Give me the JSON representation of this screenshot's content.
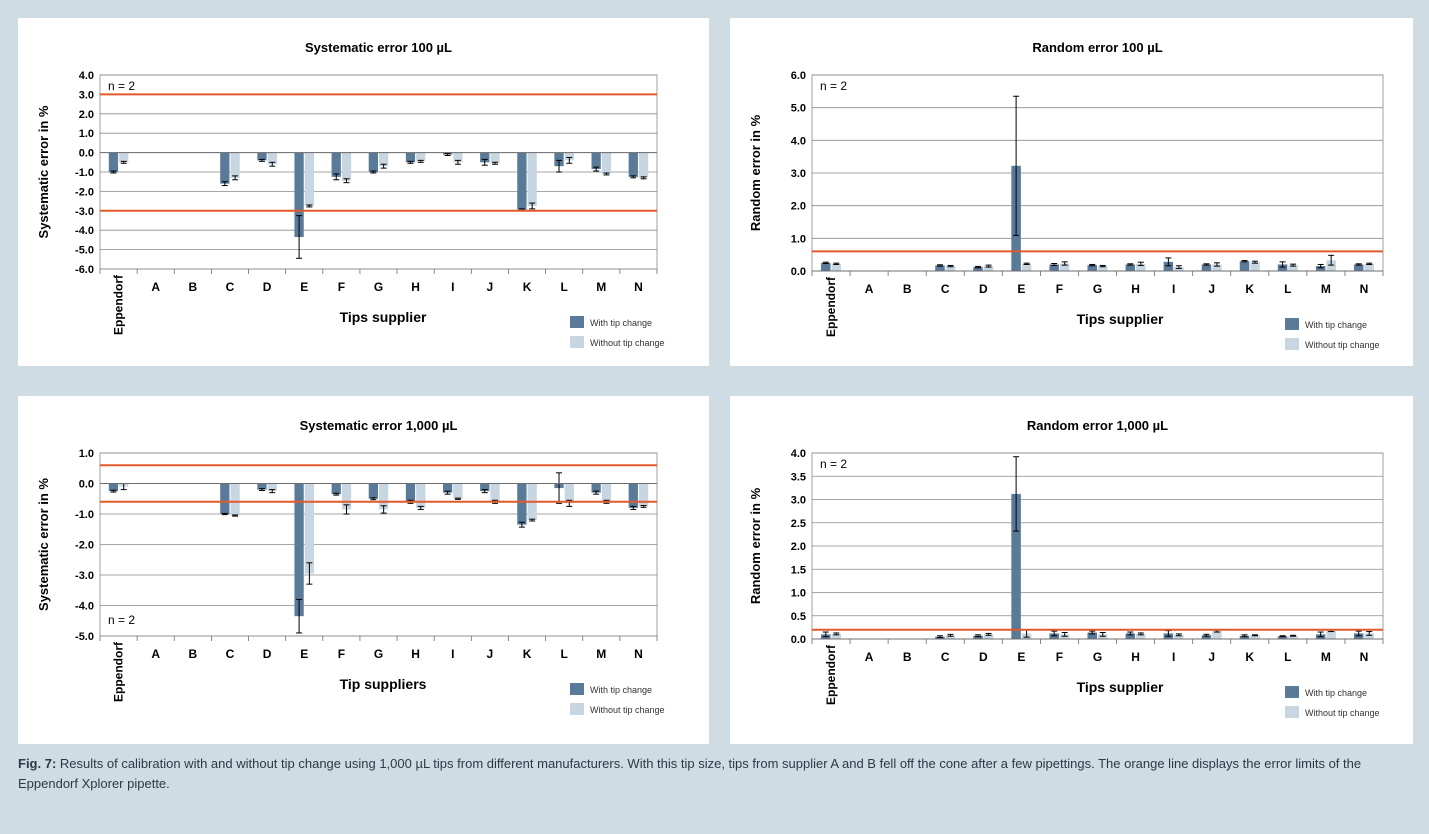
{
  "caption": {
    "label": "Fig. 7:",
    "text": "Results of calibration with and without tip change using 1,000 µL tips from different manufacturers. With this tip size, tips from supplier A and B fell off the cone after a few pipettings. The orange line displays the error limits of the Eppendorf Xplorer pipette."
  },
  "colors": {
    "with": "#5a7a9a",
    "without": "#c8d6e1",
    "limit": "#e2592a",
    "background": "#cfdce3"
  },
  "chart_data": [
    {
      "type": "bar",
      "title": "Systematic error 100 µL",
      "xlabel": "Tips supplier",
      "ylabel": "Systematic error in %",
      "note": "n = 2",
      "categories": [
        "Eppendorf",
        "A",
        "B",
        "C",
        "D",
        "E",
        "F",
        "G",
        "H",
        "I",
        "J",
        "K",
        "L",
        "M",
        "N"
      ],
      "series": [
        {
          "name": "With tip change",
          "values": [
            -1.0,
            null,
            null,
            -1.6,
            -0.4,
            -4.35,
            -1.25,
            -1.0,
            -0.5,
            -0.1,
            -0.5,
            -2.95,
            -0.7,
            -0.85,
            -1.25
          ],
          "errors": [
            0.05,
            null,
            null,
            0.1,
            0.05,
            1.1,
            0.15,
            0.05,
            0.05,
            0.05,
            0.15,
            0.05,
            0.3,
            0.1,
            0.05
          ]
        },
        {
          "name": "Without tip change",
          "values": [
            -0.5,
            null,
            null,
            -1.3,
            -0.6,
            -2.75,
            -1.45,
            -0.7,
            -0.45,
            -0.5,
            -0.55,
            -2.75,
            -0.4,
            -1.1,
            -1.3
          ],
          "errors": [
            0.05,
            null,
            null,
            0.1,
            0.1,
            0.05,
            0.1,
            0.1,
            0.05,
            0.1,
            0.05,
            0.15,
            0.15,
            0.05,
            0.05
          ]
        }
      ],
      "limits": [
        3.0,
        -3.0
      ],
      "ylim": [
        -6.0,
        4.0
      ],
      "yticks": [
        "4.0",
        "3.0",
        "2.0",
        "1.0",
        "0.0",
        "-1.0",
        "-2.0",
        "-3.0",
        "-4.0",
        "-5.0",
        "-6.0"
      ],
      "grid": true,
      "legend": "bottom-right"
    },
    {
      "type": "bar",
      "title": "Random error 100 µL",
      "xlabel": "Tips supplier",
      "ylabel": "Random error in %",
      "note": "n = 2",
      "categories": [
        "Eppendorf",
        "A",
        "B",
        "C",
        "D",
        "E",
        "F",
        "G",
        "H",
        "I",
        "J",
        "K",
        "L",
        "M",
        "N"
      ],
      "series": [
        {
          "name": "With tip change",
          "values": [
            0.25,
            null,
            null,
            0.17,
            0.12,
            3.22,
            0.2,
            0.18,
            0.2,
            0.28,
            0.2,
            0.3,
            0.2,
            0.15,
            0.2
          ],
          "errors": [
            0.02,
            null,
            null,
            0.02,
            0.02,
            2.13,
            0.03,
            0.02,
            0.02,
            0.12,
            0.02,
            0.02,
            0.08,
            0.05,
            0.02
          ]
        },
        {
          "name": "Without tip change",
          "values": [
            0.22,
            null,
            null,
            0.15,
            0.15,
            0.22,
            0.23,
            0.15,
            0.22,
            0.12,
            0.2,
            0.27,
            0.18,
            0.33,
            0.22
          ],
          "errors": [
            0.02,
            null,
            null,
            0.02,
            0.03,
            0.02,
            0.05,
            0.02,
            0.05,
            0.04,
            0.05,
            0.03,
            0.03,
            0.15,
            0.02
          ]
        }
      ],
      "limits": [
        0.6
      ],
      "ylim": [
        0.0,
        6.0
      ],
      "yticks": [
        "6.0",
        "5.0",
        "4.0",
        "3.0",
        "2.0",
        "1.0",
        "0.0"
      ],
      "grid": true,
      "legend": "bottom-right"
    },
    {
      "type": "bar",
      "title": "Systematic error 1,000 µL",
      "xlabel": "Tip suppliers",
      "ylabel": "Systematic error in %",
      "note": "n = 2",
      "categories": [
        "Eppendorf",
        "A",
        "B",
        "C",
        "D",
        "E",
        "F",
        "G",
        "H",
        "I",
        "J",
        "K",
        "L",
        "M",
        "N"
      ],
      "series": [
        {
          "name": "With tip change",
          "values": [
            -0.25,
            null,
            null,
            -1.0,
            -0.2,
            -4.35,
            -0.35,
            -0.5,
            -0.6,
            -0.3,
            -0.25,
            -1.35,
            -0.15,
            -0.3,
            -0.8
          ],
          "errors": [
            0.03,
            null,
            null,
            0.02,
            0.03,
            0.55,
            0.03,
            0.03,
            0.05,
            0.05,
            0.05,
            0.08,
            0.5,
            0.05,
            0.05
          ]
        },
        {
          "name": "Without tip change",
          "values": [
            -0.1,
            null,
            null,
            -1.05,
            -0.25,
            -2.95,
            -0.85,
            -0.85,
            -0.8,
            -0.5,
            -0.6,
            -1.2,
            -0.65,
            -0.6,
            -0.75
          ],
          "errors": [
            0.1,
            null,
            null,
            0.02,
            0.05,
            0.35,
            0.15,
            0.12,
            0.05,
            0.02,
            0.05,
            0.03,
            0.1,
            0.05,
            0.03
          ]
        }
      ],
      "limits": [
        0.6,
        -0.6
      ],
      "ylim": [
        -5.0,
        1.0
      ],
      "yticks": [
        "1.0",
        "0.0",
        "-1.0",
        "-2.0",
        "-3.0",
        "-4.0",
        "-5.0"
      ],
      "grid": true,
      "legend": "bottom-right"
    },
    {
      "type": "bar",
      "title": "Random error 1,000 µL",
      "xlabel": "Tips supplier",
      "ylabel": "Random error in %",
      "note": "n = 2",
      "categories": [
        "Eppendorf",
        "A",
        "B",
        "C",
        "D",
        "E",
        "F",
        "G",
        "H",
        "I",
        "J",
        "K",
        "L",
        "M",
        "N"
      ],
      "series": [
        {
          "name": "With tip change",
          "values": [
            0.1,
            null,
            null,
            0.05,
            0.07,
            3.12,
            0.12,
            0.14,
            0.12,
            0.12,
            0.08,
            0.07,
            0.06,
            0.1,
            0.12
          ],
          "errors": [
            0.05,
            null,
            null,
            0.02,
            0.02,
            0.8,
            0.05,
            0.03,
            0.03,
            0.06,
            0.02,
            0.02,
            0.01,
            0.05,
            0.05
          ]
        },
        {
          "name": "Without tip change",
          "values": [
            0.11,
            null,
            null,
            0.08,
            0.1,
            0.12,
            0.1,
            0.1,
            0.11,
            0.09,
            0.17,
            0.08,
            0.07,
            0.18,
            0.12
          ],
          "errors": [
            0.02,
            null,
            null,
            0.02,
            0.02,
            0.08,
            0.04,
            0.04,
            0.02,
            0.02,
            0.02,
            0.01,
            0.01,
            0.02,
            0.04
          ]
        }
      ],
      "limits": [
        0.2
      ],
      "ylim": [
        0.0,
        4.0
      ],
      "yticks": [
        "4.0",
        "3.5",
        "3.0",
        "2.5",
        "2.0",
        "1.5",
        "1.0",
        "0.5",
        "0.0"
      ],
      "grid": true,
      "legend": "bottom-right"
    }
  ]
}
